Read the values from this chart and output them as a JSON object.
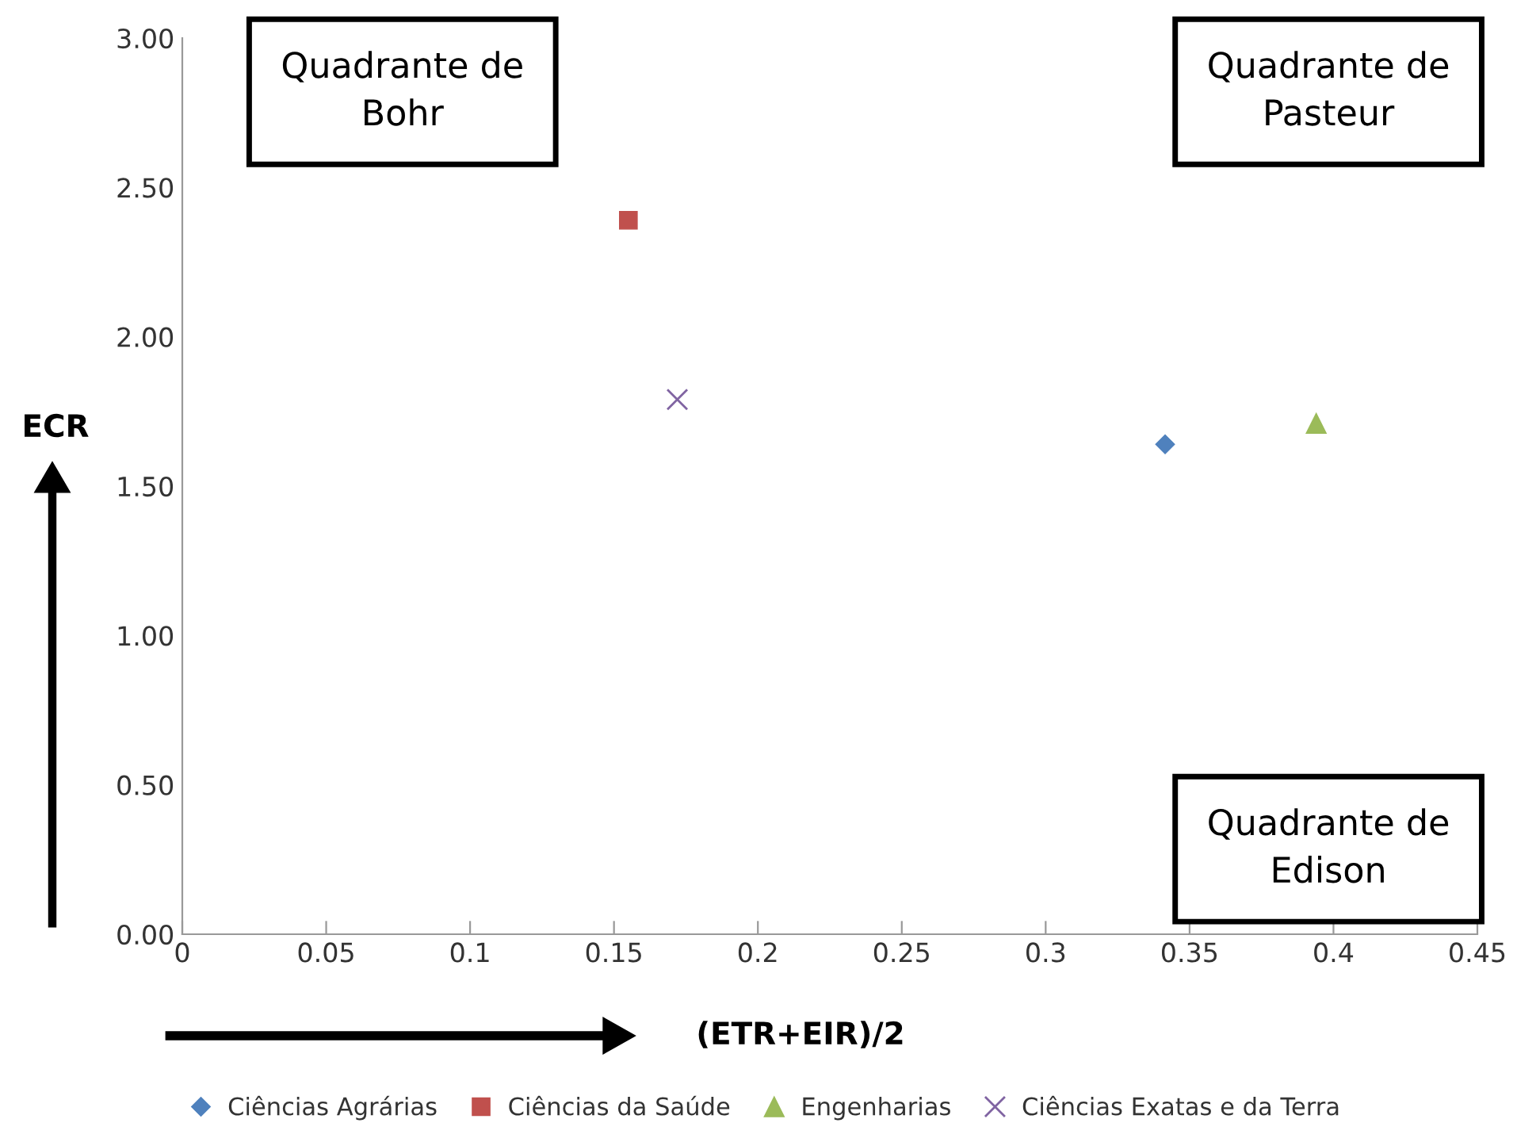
{
  "chart_data": {
    "type": "scatter",
    "xlabel": "(ETR+EIR)/2",
    "ylabel": "ECR",
    "series": [
      {
        "name": "Ciências Agrárias",
        "color": "#4f81bd",
        "marker": "diamond",
        "x": [
          0.3415
        ],
        "values": [
          1.64
        ]
      },
      {
        "name": "Ciências da Saúde",
        "color": "#c0504d",
        "marker": "square",
        "x": [
          0.155
        ],
        "values": [
          2.39
        ]
      },
      {
        "name": "Engenharias",
        "color": "#9bbb59",
        "marker": "triangle",
        "x": [
          0.394
        ],
        "values": [
          1.71
        ]
      },
      {
        "name": "Ciências Exatas e da Terra",
        "color": "#8064a2",
        "marker": "cross",
        "x": [
          0.172
        ],
        "values": [
          1.79
        ]
      }
    ],
    "xlim": [
      0,
      0.45
    ],
    "xticks": [
      0,
      0.05,
      0.1,
      0.15,
      0.2,
      0.25,
      0.3,
      0.35,
      0.4,
      0.45
    ],
    "ylim": [
      0,
      3
    ],
    "yticks": [
      {
        "value": 0,
        "label": "0.00"
      },
      {
        "value": 0.5,
        "label": "0.50"
      },
      {
        "value": 1,
        "label": "1.00"
      },
      {
        "value": 1.5,
        "label": "1.50"
      },
      {
        "value": 2,
        "label": "2.00"
      },
      {
        "value": 2.5,
        "label": "2.50"
      },
      {
        "value": 3,
        "label": "3.00"
      }
    ],
    "annotations": [
      "Quadrante de\nBohr",
      "Quadrante de\nPasteur",
      "Quadrante de\nEdison"
    ],
    "grid": false,
    "legend": "bottom"
  }
}
